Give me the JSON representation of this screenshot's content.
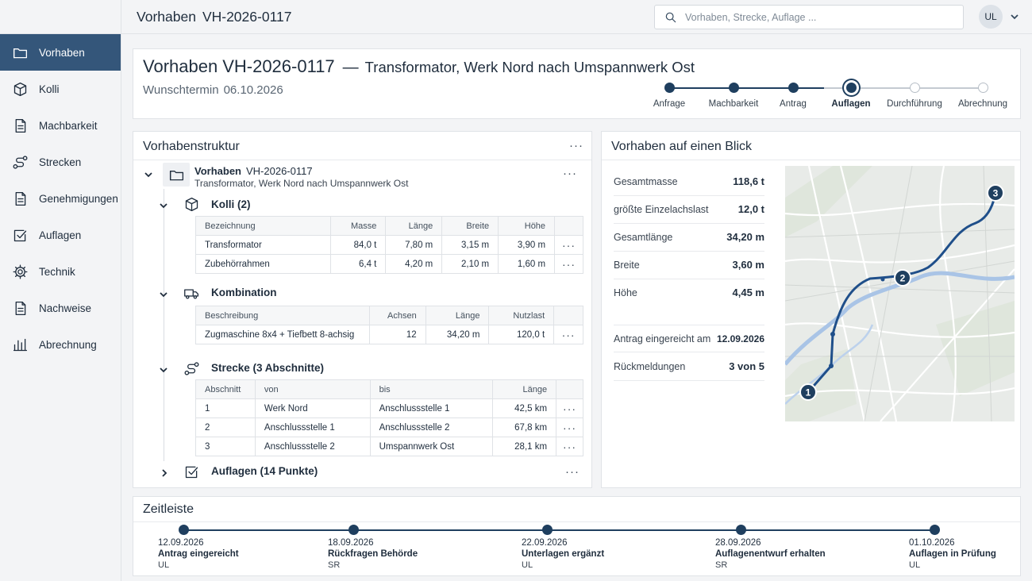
{
  "topbar": {
    "title": "Vorhaben",
    "id": "VH-2026-0117",
    "search_placeholder": "Vorhaben, Strecke, Auflage ...",
    "avatar": "UL"
  },
  "sidebar": {
    "items": [
      {
        "label": "Vorhaben",
        "icon": "folder-icon",
        "active": true
      },
      {
        "label": "Kolli",
        "icon": "box-icon"
      },
      {
        "label": "Machbarkeit",
        "icon": "document-icon"
      },
      {
        "label": "Strecken",
        "icon": "route-icon"
      },
      {
        "label": "Genehmigungen",
        "icon": "document-icon"
      },
      {
        "label": "Auflagen",
        "icon": "checkbox-icon"
      },
      {
        "label": "Technik",
        "icon": "gear-icon"
      },
      {
        "label": "Nachweise",
        "icon": "document-icon"
      },
      {
        "label": "Abrechnung",
        "icon": "bar-chart-icon"
      }
    ]
  },
  "header": {
    "title": "Vorhaben",
    "id": "VH-2026-0117",
    "separator": "—",
    "subtitle": "Transformator, Werk Nord nach Umspannwerk Ost",
    "wunschtermin_label": "Wunschtermin",
    "wunschtermin_value": "06.10.2026",
    "steps": [
      {
        "label": "Anfrage",
        "state": "done"
      },
      {
        "label": "Machbarkeit",
        "state": "done"
      },
      {
        "label": "Antrag",
        "state": "done"
      },
      {
        "label": "Auflagen",
        "state": "current"
      },
      {
        "label": "Durchführung",
        "state": "future"
      },
      {
        "label": "Abrechnung",
        "state": "future"
      }
    ]
  },
  "structure": {
    "title": "Vorhabenstruktur",
    "root": {
      "title": "Vorhaben",
      "id": "VH-2026-0117",
      "subtitle": "Transformator, Werk Nord nach Umspannwerk Ost"
    },
    "kolli": {
      "title": "Kolli (2)",
      "headers": [
        "Bezeichnung",
        "Masse",
        "Länge",
        "Breite",
        "Höhe"
      ],
      "rows": [
        [
          "Transformator",
          "84,0 t",
          "7,80 m",
          "3,15 m",
          "3,90 m"
        ],
        [
          "Zubehörrahmen",
          "6,4 t",
          "4,20 m",
          "2,10 m",
          "1,60 m"
        ]
      ]
    },
    "kombination": {
      "title": "Kombination",
      "headers": [
        "Beschreibung",
        "Achsen",
        "Länge",
        "Nutzlast"
      ],
      "rows": [
        [
          "Zugmaschine 8x4 + Tiefbett 8-achsig",
          "12",
          "34,20 m",
          "120,0 t"
        ]
      ]
    },
    "strecke": {
      "title": "Strecke (3 Abschnitte)",
      "headers": [
        "Abschnitt",
        "von",
        "bis",
        "Länge"
      ],
      "rows": [
        [
          "1",
          "Werk Nord",
          "Anschlussstelle 1",
          "42,5 km"
        ],
        [
          "2",
          "Anschlussstelle 1",
          "Anschlussstelle 2",
          "67,8 km"
        ],
        [
          "3",
          "Anschlussstelle 2",
          "Umspannwerk Ost",
          "28,1 km"
        ]
      ]
    },
    "auflagen": {
      "title": "Auflagen (14 Punkte)"
    }
  },
  "summary": {
    "title": "Vorhaben auf einen Blick",
    "metrics": [
      {
        "label": "Gesamtmasse",
        "value": "118,6 t"
      },
      {
        "label": "größte Einzelachslast",
        "value": "12,0 t"
      },
      {
        "label": "Gesamtlänge",
        "value": "34,20 m"
      },
      {
        "label": "Breite",
        "value": "3,60 m"
      },
      {
        "label": "Höhe",
        "value": "4,45 m"
      }
    ],
    "antrag_label": "Antrag eingereicht am",
    "antrag_value": "12.09.2026",
    "rueck_label": "Rückmeldungen",
    "rueck_value": "3 von 5",
    "map_markers": [
      "1",
      "2",
      "3"
    ]
  },
  "timeline": {
    "title": "Zeitleiste",
    "events": [
      {
        "date": "12.09.2026",
        "title": "Antrag eingereicht",
        "user": "UL"
      },
      {
        "date": "18.09.2026",
        "title": "Rückfragen Behörde",
        "user": "SR"
      },
      {
        "date": "22.09.2026",
        "title": "Unterlagen ergänzt",
        "user": "UL"
      },
      {
        "date": "28.09.2026",
        "title": "Auflagenentwurf erhalten",
        "user": "SR"
      },
      {
        "date": "01.10.2026",
        "title": "Auflagen in Prüfung",
        "user": "UL"
      }
    ]
  },
  "colors": {
    "accent": "#34567a",
    "route": "#1f4f8a",
    "water": "#a9c4e6",
    "dark": "#1f3f5f"
  }
}
